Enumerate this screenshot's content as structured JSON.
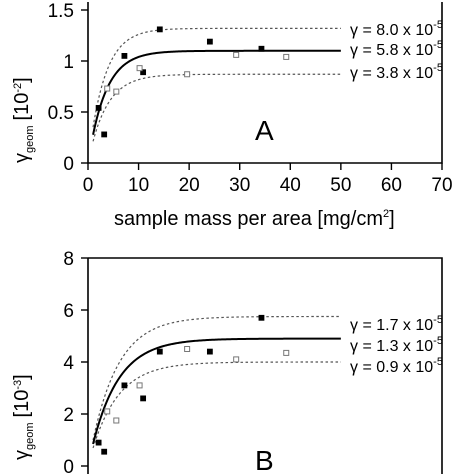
{
  "chart_data": [
    {
      "type": "scatter",
      "panel_label": "A",
      "xlabel": "sample mass per area [mg/cm",
      "xlabel_sup": "2",
      "xlabel_end": "]",
      "ylabel_main": "γ",
      "ylabel_sub": "geom",
      "ylabel_unit": "[10",
      "ylabel_unit_sup": "-2",
      "ylabel_unit_end": "]",
      "xlim": [
        0,
        70
      ],
      "ylim": [
        0,
        1.5
      ],
      "x_ticks": [
        0,
        10,
        20,
        30,
        40,
        50,
        60,
        70
      ],
      "x_tick_labels": [
        "0",
        "10",
        "20",
        "30",
        "40",
        "50",
        "60",
        "70"
      ],
      "y_ticks": [
        0,
        0.5,
        1,
        1.5
      ],
      "y_tick_labels": [
        "0",
        "0.5",
        "1",
        "1.5"
      ],
      "legend": [
        {
          "text": "γ = 8.0 x 10",
          "sup": "-5"
        },
        {
          "text": "γ = 5.8 x 10",
          "sup": "-5"
        },
        {
          "text": "γ = 3.8 x 10",
          "sup": "-5"
        }
      ],
      "series": [
        {
          "style": "filled",
          "x": [
            2.1,
            3.2,
            7.2,
            10.9,
            14.2,
            24.1,
            34.3
          ],
          "y": [
            0.54,
            0.28,
            1.05,
            0.89,
            1.31,
            1.19,
            1.12
          ]
        },
        {
          "style": "open",
          "x": [
            3.8,
            5.6,
            10.2,
            19.6,
            29.3,
            39.2
          ],
          "y": [
            0.73,
            0.7,
            0.93,
            0.87,
            1.06,
            1.04
          ]
        }
      ],
      "curves": [
        {
          "style": "dotted",
          "plateau": 1.32,
          "k": 0.31
        },
        {
          "style": "solid",
          "plateau": 1.1,
          "k": 0.29
        },
        {
          "style": "dotted",
          "plateau": 0.87,
          "k": 0.28
        }
      ]
    },
    {
      "type": "scatter",
      "panel_label": "B",
      "ylabel_main": "γ",
      "ylabel_sub": "geom",
      "ylabel_unit": "[10",
      "ylabel_unit_sup": "-3",
      "ylabel_unit_end": "]",
      "xlim": [
        0,
        70
      ],
      "ylim": [
        0,
        8
      ],
      "y_ticks": [
        0,
        2,
        4,
        6,
        8
      ],
      "y_tick_labels": [
        "0",
        "2",
        "4",
        "6",
        "8"
      ],
      "legend": [
        {
          "text": "γ = 1.7 x 10",
          "sup": "-5"
        },
        {
          "text": "γ = 1.3 x 10",
          "sup": "-5"
        },
        {
          "text": "γ = 0.9 x 10",
          "sup": "-5"
        }
      ],
      "series": [
        {
          "style": "filled",
          "x": [
            2.1,
            3.2,
            7.2,
            10.9,
            14.2,
            24.1,
            34.3
          ],
          "y": [
            0.9,
            0.55,
            3.1,
            2.6,
            4.4,
            4.4,
            5.7
          ]
        },
        {
          "style": "open",
          "x": [
            3.8,
            5.6,
            10.2,
            19.6,
            29.3,
            39.2
          ],
          "y": [
            2.1,
            1.75,
            3.1,
            4.5,
            4.1,
            4.35
          ]
        }
      ],
      "curves": [
        {
          "style": "dotted",
          "plateau": 5.75,
          "k": 0.19
        },
        {
          "style": "solid",
          "plateau": 4.9,
          "k": 0.19
        },
        {
          "style": "dotted",
          "plateau": 4.0,
          "k": 0.19
        }
      ]
    }
  ]
}
